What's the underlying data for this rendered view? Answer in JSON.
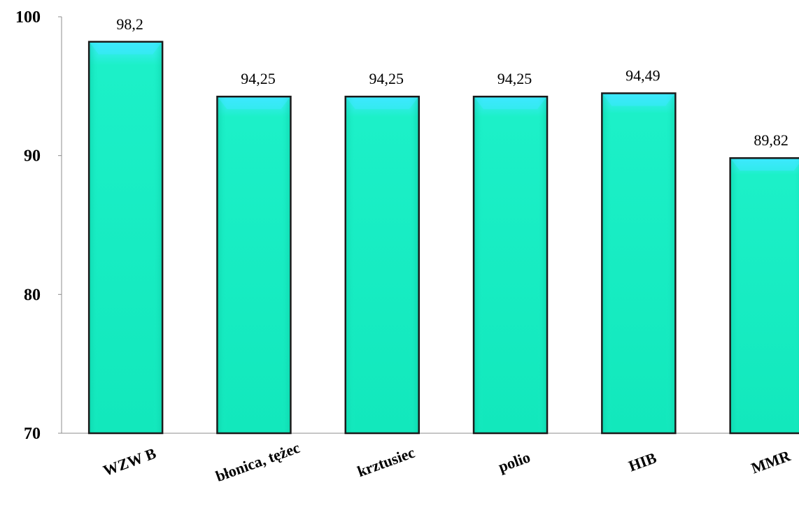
{
  "chart_data": {
    "type": "bar",
    "categories": [
      "WZW B",
      "błonica, tężec",
      "krztusiec",
      "polio",
      "HIB",
      "MMR"
    ],
    "values": [
      98.2,
      94.25,
      94.25,
      94.25,
      94.49,
      89.82
    ],
    "value_labels": [
      "98,2",
      "94,25",
      "94,25",
      "94,25",
      "94,49",
      "89,82"
    ],
    "ylim": [
      70,
      100
    ],
    "yticks": [
      70,
      80,
      90,
      100
    ],
    "bar_color": "#1cf0c8",
    "bar_highlight_color": "#3ce8ff",
    "grid": false
  }
}
